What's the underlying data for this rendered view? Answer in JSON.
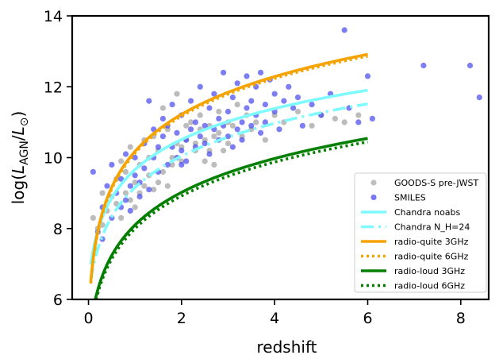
{
  "chart_data": {
    "type": "scatter",
    "xlabel": "redshift",
    "ylabel": "log(L_AGN/L_☉)",
    "ylabel_parts": {
      "pre": "log(",
      "main": "L",
      "sub": "AGN",
      "slash": "/",
      "main2": "L",
      "sub2": "⊙",
      "post": ")"
    },
    "xlim": [
      -0.35,
      8.6
    ],
    "ylim": [
      6,
      14
    ],
    "xticks": [
      0,
      2,
      4,
      6,
      8
    ],
    "yticks": [
      6,
      8,
      10,
      12,
      14
    ],
    "xtick_labels": [
      "0",
      "2",
      "4",
      "6",
      "8"
    ],
    "ytick_labels": [
      "6",
      "8",
      "10",
      "12",
      "14"
    ],
    "grid": false,
    "legend_position": "lower-right",
    "series": [
      {
        "name": "GOODS-S pre-JWST",
        "kind": "scatter",
        "color": "#a9a9a9",
        "points": [
          [
            0.1,
            8.3
          ],
          [
            0.15,
            7.4
          ],
          [
            0.2,
            8.0
          ],
          [
            0.3,
            8.1
          ],
          [
            0.3,
            9.0
          ],
          [
            0.4,
            8.5
          ],
          [
            0.5,
            8.9
          ],
          [
            0.6,
            8.7
          ],
          [
            0.6,
            9.4
          ],
          [
            0.7,
            8.3
          ],
          [
            0.7,
            9.9
          ],
          [
            0.8,
            9.0
          ],
          [
            0.8,
            9.6
          ],
          [
            0.9,
            8.8
          ],
          [
            0.9,
            10.3
          ],
          [
            1.0,
            9.3
          ],
          [
            1.0,
            8.6
          ],
          [
            1.1,
            9.8
          ],
          [
            1.1,
            9.0
          ],
          [
            1.2,
            10.5
          ],
          [
            1.2,
            9.2
          ],
          [
            1.3,
            9.5
          ],
          [
            1.3,
            10.0
          ],
          [
            1.4,
            10.6
          ],
          [
            1.4,
            9.1
          ],
          [
            1.5,
            9.3
          ],
          [
            1.5,
            10.2
          ],
          [
            1.6,
            9.6
          ],
          [
            1.6,
            11.4
          ],
          [
            1.7,
            9.2
          ],
          [
            1.7,
            10.8
          ],
          [
            1.8,
            10.0
          ],
          [
            1.8,
            9.8
          ],
          [
            1.9,
            10.4
          ],
          [
            1.9,
            11.8
          ],
          [
            2.0,
            10.3
          ],
          [
            2.0,
            9.9
          ],
          [
            2.1,
            10.5
          ],
          [
            2.1,
            10.9
          ],
          [
            2.2,
            11.0
          ],
          [
            2.3,
            10.4
          ],
          [
            2.3,
            10.2
          ],
          [
            2.4,
            10.8
          ],
          [
            2.4,
            11.2
          ],
          [
            2.5,
            10.5
          ],
          [
            2.5,
            9.9
          ],
          [
            2.6,
            10.9
          ],
          [
            2.6,
            10.2
          ],
          [
            2.7,
            10.6
          ],
          [
            2.7,
            9.8
          ],
          [
            2.8,
            11.3
          ],
          [
            2.8,
            10.7
          ],
          [
            2.9,
            10.2
          ],
          [
            3.0,
            11.0
          ],
          [
            3.0,
            10.4
          ],
          [
            3.1,
            10.9
          ],
          [
            3.2,
            11.5
          ],
          [
            3.3,
            10.6
          ],
          [
            3.4,
            11.2
          ],
          [
            3.5,
            10.8
          ],
          [
            3.6,
            11.0
          ],
          [
            3.8,
            10.5
          ],
          [
            4.0,
            11.2
          ],
          [
            4.2,
            11.0
          ],
          [
            4.5,
            11.3
          ],
          [
            4.8,
            10.9
          ],
          [
            5.0,
            11.2
          ],
          [
            5.3,
            11.1
          ],
          [
            5.5,
            11.0
          ],
          [
            5.8,
            11.2
          ]
        ]
      },
      {
        "name": "SMILES",
        "kind": "scatter",
        "color": "#4b4bf0",
        "points": [
          [
            0.1,
            9.6
          ],
          [
            0.2,
            7.9
          ],
          [
            0.3,
            7.7
          ],
          [
            0.3,
            8.6
          ],
          [
            0.4,
            9.2
          ],
          [
            0.5,
            8.3
          ],
          [
            0.5,
            9.8
          ],
          [
            0.6,
            9.0
          ],
          [
            0.7,
            8.6
          ],
          [
            0.7,
            9.4
          ],
          [
            0.8,
            8.8
          ],
          [
            0.8,
            10.1
          ],
          [
            0.9,
            9.2
          ],
          [
            0.9,
            8.5
          ],
          [
            1.0,
            9.5
          ],
          [
            1.0,
            10.0
          ],
          [
            1.1,
            9.3
          ],
          [
            1.1,
            8.9
          ],
          [
            1.2,
            10.4
          ],
          [
            1.2,
            9.7
          ],
          [
            1.3,
            11.6
          ],
          [
            1.3,
            9.1
          ],
          [
            1.4,
            10.8
          ],
          [
            1.4,
            10.0
          ],
          [
            1.5,
            9.6
          ],
          [
            1.5,
            10.3
          ],
          [
            1.6,
            11.1
          ],
          [
            1.6,
            10.6
          ],
          [
            1.7,
            9.8
          ],
          [
            1.7,
            10.9
          ],
          [
            1.8,
            10.3
          ],
          [
            1.8,
            11.5
          ],
          [
            1.9,
            10.0
          ],
          [
            1.9,
            10.7
          ],
          [
            2.0,
            9.8
          ],
          [
            2.0,
            10.2
          ],
          [
            2.0,
            11.2
          ],
          [
            2.1,
            10.5
          ],
          [
            2.1,
            9.9
          ],
          [
            2.2,
            10.8
          ],
          [
            2.2,
            11.6
          ],
          [
            2.3,
            10.3
          ],
          [
            2.3,
            11.0
          ],
          [
            2.4,
            10.6
          ],
          [
            2.4,
            12.0
          ],
          [
            2.5,
            10.9
          ],
          [
            2.5,
            10.4
          ],
          [
            2.6,
            11.4
          ],
          [
            2.6,
            10.1
          ],
          [
            2.7,
            10.8
          ],
          [
            2.7,
            11.8
          ],
          [
            2.8,
            10.5
          ],
          [
            2.8,
            11.1
          ],
          [
            2.9,
            10.9
          ],
          [
            2.9,
            12.4
          ],
          [
            3.0,
            10.6
          ],
          [
            3.0,
            11.3
          ],
          [
            3.1,
            10.3
          ],
          [
            3.1,
            11.7
          ],
          [
            3.2,
            10.8
          ],
          [
            3.2,
            12.1
          ],
          [
            3.3,
            11.0
          ],
          [
            3.3,
            10.5
          ],
          [
            3.4,
            11.4
          ],
          [
            3.4,
            12.3
          ],
          [
            3.5,
            10.9
          ],
          [
            3.5,
            11.6
          ],
          [
            3.6,
            11.2
          ],
          [
            3.6,
            12.0
          ],
          [
            3.7,
            10.7
          ],
          [
            3.7,
            12.4
          ],
          [
            3.8,
            11.5
          ],
          [
            3.8,
            11.0
          ],
          [
            3.9,
            12.2
          ],
          [
            4.0,
            11.3
          ],
          [
            4.0,
            11.8
          ],
          [
            4.1,
            10.8
          ],
          [
            4.2,
            11.6
          ],
          [
            4.3,
            12.0
          ],
          [
            4.4,
            11.4
          ],
          [
            4.5,
            11.7
          ],
          [
            4.6,
            10.9
          ],
          [
            4.8,
            11.5
          ],
          [
            5.0,
            11.2
          ],
          [
            5.2,
            11.8
          ],
          [
            5.5,
            13.6
          ],
          [
            5.6,
            11.4
          ],
          [
            5.8,
            11.0
          ],
          [
            6.0,
            12.3
          ],
          [
            6.1,
            11.1
          ],
          [
            7.2,
            12.6
          ],
          [
            8.2,
            12.6
          ],
          [
            8.4,
            11.7
          ]
        ]
      },
      {
        "name": "Chandra noabs",
        "kind": "line",
        "color": "#7ffaff",
        "dash": "",
        "params": {
          "a": 9.55,
          "b": 0.09,
          "c": 3.0
        }
      },
      {
        "name": "Chandra N_H=24",
        "kind": "line",
        "color": "#7ffaff",
        "dash": "16,6,3,6",
        "params": {
          "a": 9.0,
          "b": 0.12,
          "c": 3.2
        }
      },
      {
        "name": "radio-quite 3GHz",
        "kind": "line",
        "color": "#f5a300",
        "dash": "",
        "params": {
          "a": 10.1,
          "b": 0.05,
          "c": 3.6
        }
      },
      {
        "name": "radio-quite 6GHz",
        "kind": "line",
        "color": "#f5a300",
        "dash": "3,4",
        "params": {
          "a": 10.05,
          "b": 0.05,
          "c": 3.6
        }
      },
      {
        "name": "radio-loud 3GHz",
        "kind": "line",
        "color": "#037f00",
        "dash": "",
        "params": {
          "a": 7.95,
          "b": 0.11,
          "c": 3.3
        }
      },
      {
        "name": "radio-loud 6GHz",
        "kind": "line",
        "color": "#037f00",
        "dash": "3,4",
        "params": {
          "a": 7.85,
          "b": 0.11,
          "c": 3.3
        }
      }
    ]
  }
}
